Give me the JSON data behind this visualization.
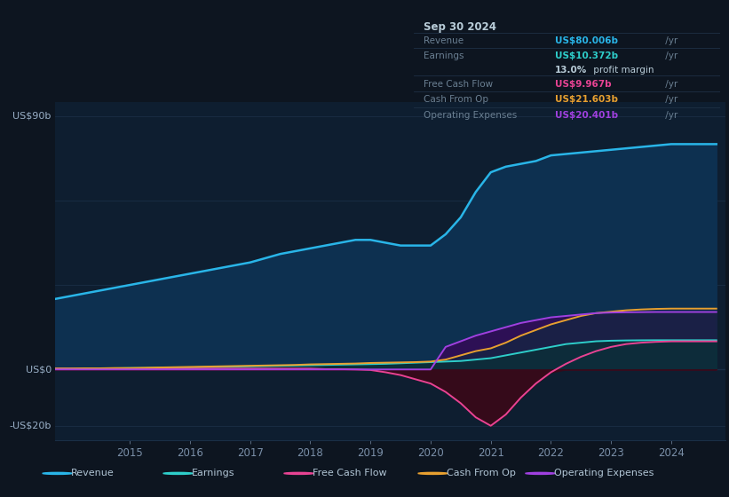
{
  "background_color": "#0d1520",
  "chart_area_color": "#0e1e30",
  "grid_color": "#1a2e45",
  "ylabel_90": "US$90b",
  "ylabel_0": "US$0",
  "ylabel_neg20": "-US$20b",
  "x_ticks": [
    2015,
    2016,
    2017,
    2018,
    2019,
    2020,
    2021,
    2022,
    2023,
    2024
  ],
  "years": [
    2013.75,
    2014.0,
    2014.25,
    2014.5,
    2014.75,
    2015.0,
    2015.25,
    2015.5,
    2015.75,
    2016.0,
    2016.25,
    2016.5,
    2016.75,
    2017.0,
    2017.25,
    2017.5,
    2017.75,
    2018.0,
    2018.25,
    2018.5,
    2018.75,
    2019.0,
    2019.25,
    2019.5,
    2019.75,
    2020.0,
    2020.25,
    2020.5,
    2020.75,
    2021.0,
    2021.25,
    2021.5,
    2021.75,
    2022.0,
    2022.25,
    2022.5,
    2022.75,
    2023.0,
    2023.25,
    2023.5,
    2023.75,
    2024.0,
    2024.25,
    2024.5,
    2024.75
  ],
  "revenue": [
    25,
    26,
    27,
    28,
    29,
    30,
    31,
    32,
    33,
    34,
    35,
    36,
    37,
    38,
    39.5,
    41,
    42,
    43,
    44,
    45,
    46,
    46,
    45,
    44,
    44,
    44,
    48,
    54,
    63,
    70,
    72,
    73,
    74,
    76,
    76.5,
    77,
    77.5,
    78,
    78.5,
    79,
    79.5,
    80,
    80,
    80,
    80
  ],
  "earnings": [
    0.3,
    0.3,
    0.3,
    0.4,
    0.4,
    0.5,
    0.5,
    0.6,
    0.6,
    0.7,
    0.8,
    0.9,
    1.0,
    1.1,
    1.2,
    1.3,
    1.4,
    1.5,
    1.6,
    1.7,
    1.8,
    1.9,
    2.0,
    2.2,
    2.4,
    2.6,
    2.8,
    3.0,
    3.5,
    4.0,
    5.0,
    6.0,
    7.0,
    8.0,
    9.0,
    9.5,
    10.0,
    10.2,
    10.3,
    10.35,
    10.37,
    10.37,
    10.37,
    10.37,
    10.37
  ],
  "free_cash_flow": [
    0.3,
    0.3,
    0.3,
    0.3,
    0.3,
    0.3,
    0.3,
    0.3,
    0.3,
    0.3,
    0.3,
    0.3,
    0.3,
    0.3,
    0.3,
    0.3,
    0.3,
    0.3,
    0.1,
    0.1,
    0.0,
    -0.2,
    -1.0,
    -2.0,
    -3.5,
    -5.0,
    -8.0,
    -12.0,
    -17.0,
    -20.0,
    -16.0,
    -10.0,
    -5.0,
    -1.0,
    2.0,
    4.5,
    6.5,
    8.0,
    9.0,
    9.5,
    9.8,
    9.97,
    9.97,
    9.97,
    9.97
  ],
  "cash_from_op": [
    0.3,
    0.3,
    0.4,
    0.4,
    0.5,
    0.5,
    0.6,
    0.7,
    0.8,
    0.9,
    1.0,
    1.1,
    1.2,
    1.3,
    1.4,
    1.5,
    1.6,
    1.8,
    1.9,
    2.0,
    2.1,
    2.3,
    2.4,
    2.5,
    2.6,
    2.8,
    3.5,
    5.0,
    6.5,
    7.5,
    9.5,
    12.0,
    14.0,
    16.0,
    17.5,
    19.0,
    20.0,
    20.5,
    21.0,
    21.3,
    21.5,
    21.6,
    21.6,
    21.6,
    21.6
  ],
  "operating_expenses": [
    0.0,
    0.0,
    0.0,
    0.0,
    0.0,
    0.0,
    0.0,
    0.0,
    0.0,
    0.0,
    0.0,
    0.0,
    0.0,
    0.0,
    0.0,
    0.0,
    0.0,
    0.0,
    0.0,
    0.0,
    0.0,
    0.0,
    0.0,
    0.0,
    0.0,
    0.0,
    8.0,
    10.0,
    12.0,
    13.5,
    15.0,
    16.5,
    17.5,
    18.5,
    19.0,
    19.5,
    20.0,
    20.2,
    20.3,
    20.35,
    20.4,
    20.4,
    20.4,
    20.4,
    20.4
  ],
  "revenue_color": "#29b5e8",
  "earnings_color": "#2ececa",
  "free_cash_flow_color": "#e84393",
  "cash_from_op_color": "#e8a030",
  "operating_expenses_color": "#a040e0",
  "revenue_fill": "#0d3050",
  "operating_expenses_fill": "#2d1055",
  "free_cash_flow_fill_neg": "#3a0818",
  "info_box": {
    "date": "Sep 30 2024",
    "revenue_label": "Revenue",
    "revenue_value": "US$80.006b",
    "revenue_color": "#29b5e8",
    "earnings_label": "Earnings",
    "earnings_value": "US$10.372b",
    "earnings_color": "#2ececa",
    "profit_margin": "13.0%",
    "free_cash_flow_label": "Free Cash Flow",
    "free_cash_flow_value": "US$9.967b",
    "free_cash_flow_color": "#e84393",
    "cash_from_op_label": "Cash From Op",
    "cash_from_op_value": "US$21.603b",
    "cash_from_op_color": "#e8a030",
    "operating_expenses_label": "Operating Expenses",
    "operating_expenses_value": "US$20.401b",
    "operating_expenses_color": "#a040e0"
  },
  "legend_items": [
    {
      "label": "Revenue",
      "color": "#29b5e8"
    },
    {
      "label": "Earnings",
      "color": "#2ececa"
    },
    {
      "label": "Free Cash Flow",
      "color": "#e84393"
    },
    {
      "label": "Cash From Op",
      "color": "#e8a030"
    },
    {
      "label": "Operating Expenses",
      "color": "#a040e0"
    }
  ]
}
